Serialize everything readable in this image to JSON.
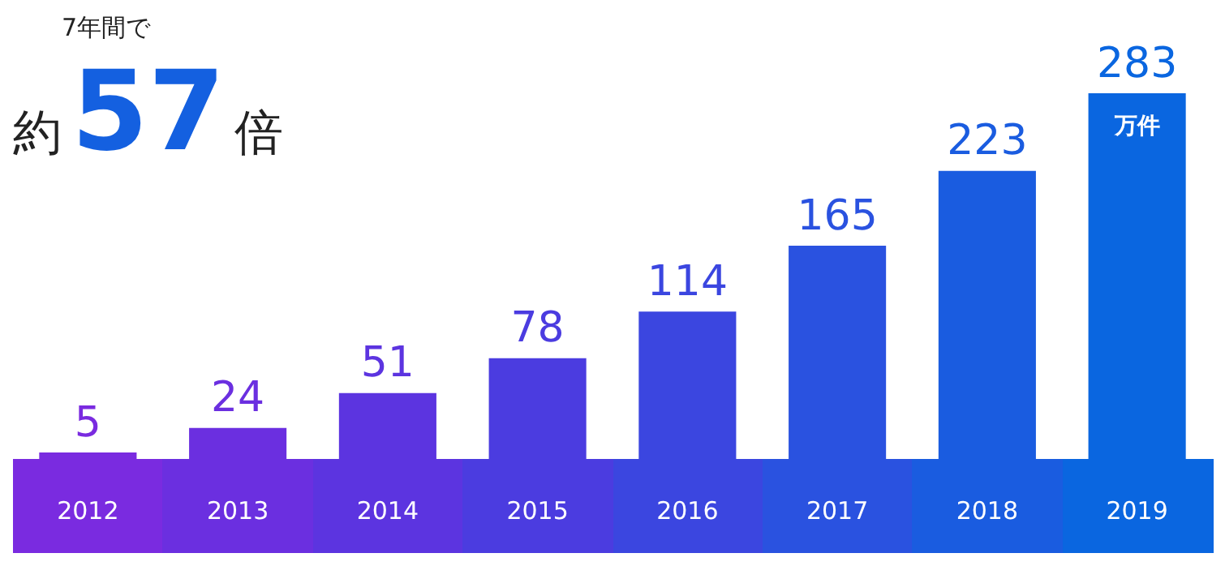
{
  "chart_data": {
    "type": "bar",
    "title": "7年間で",
    "subtitle": "約57倍",
    "categories": [
      "2012",
      "2013",
      "2014",
      "2015",
      "2016",
      "2017",
      "2018",
      "2019"
    ],
    "values": [
      5,
      24,
      51,
      78,
      114,
      165,
      223,
      283
    ],
    "colors": [
      "#7a2be0",
      "#6b2fe0",
      "#5c34e0",
      "#4b3ce0",
      "#3b46e0",
      "#2a52e0",
      "#1a5ce0",
      "#0a66e0"
    ],
    "data_labels": true,
    "annotations": [
      "万件"
    ],
    "grid": false,
    "legend": false,
    "tick_labels": "x"
  }
}
